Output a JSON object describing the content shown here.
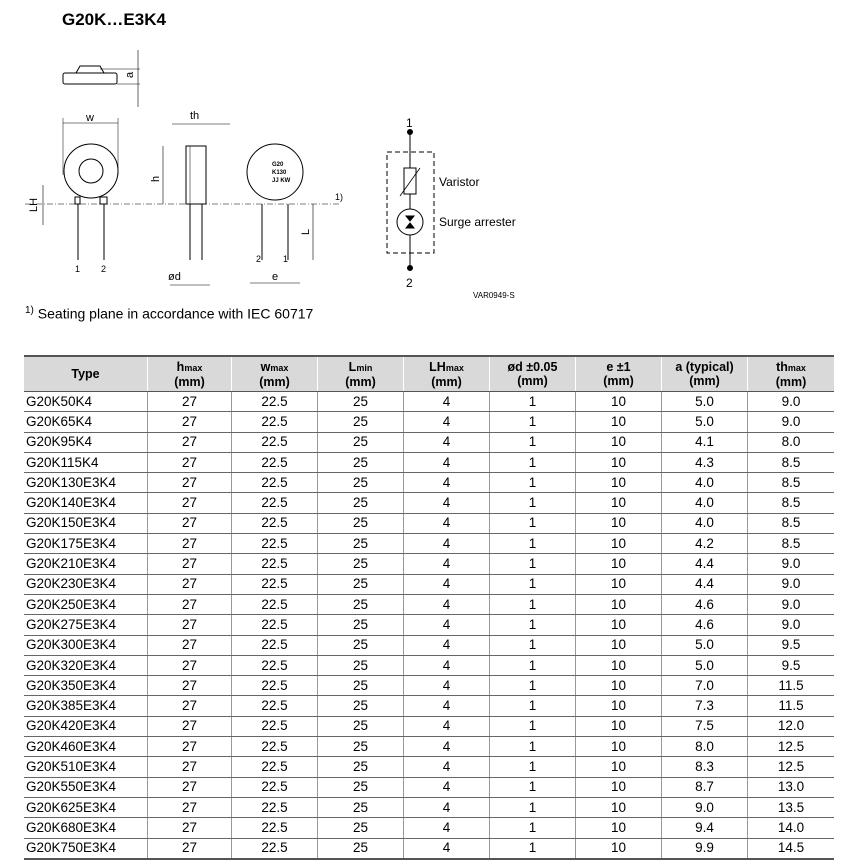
{
  "title": "G20K…E3K4",
  "drawing": {
    "dim_labels": {
      "a": "a",
      "w": "w",
      "th": "th",
      "h": "h",
      "LH": "LH",
      "L": "L",
      "d": "ød",
      "e": "e",
      "pin1": "1",
      "pin2": "2",
      "footnote_mark": "1)"
    },
    "marking": [
      "G20",
      "K130",
      "JJ KW"
    ],
    "schematic": {
      "pin_top": "1",
      "pin_bottom": "2",
      "varistor": "Varistor",
      "arrester": "Surge arrester"
    },
    "drawing_code": "VAR0949-S"
  },
  "footnote": {
    "mark": "1)",
    "text": "Seating plane in accordance with IEC 60717"
  },
  "table": {
    "headers": [
      {
        "main": "Type",
        "sub": "",
        "unit": ""
      },
      {
        "main": "h",
        "sub": "max",
        "unit": "(mm)"
      },
      {
        "main": "w",
        "sub": "max",
        "unit": "(mm)"
      },
      {
        "main": "L",
        "sub": "min",
        "unit": "(mm)"
      },
      {
        "main": "LH",
        "sub": "max",
        "unit": "(mm)"
      },
      {
        "main": "ød ±0.05",
        "sub": "",
        "unit": "(mm)"
      },
      {
        "main": "e ±1",
        "sub": "",
        "unit": "(mm)"
      },
      {
        "main": "a (typical)",
        "sub": "",
        "unit": "(mm)"
      },
      {
        "main": "th",
        "sub": "max",
        "unit": "(mm)"
      }
    ],
    "rows": [
      [
        "G20K50K4",
        "27",
        "22.5",
        "25",
        "4",
        "1",
        "10",
        "5.0",
        "9.0"
      ],
      [
        "G20K65K4",
        "27",
        "22.5",
        "25",
        "4",
        "1",
        "10",
        "5.0",
        "9.0"
      ],
      [
        "G20K95K4",
        "27",
        "22.5",
        "25",
        "4",
        "1",
        "10",
        "4.1",
        "8.0"
      ],
      [
        "G20K115K4",
        "27",
        "22.5",
        "25",
        "4",
        "1",
        "10",
        "4.3",
        "8.5"
      ],
      [
        "G20K130E3K4",
        "27",
        "22.5",
        "25",
        "4",
        "1",
        "10",
        "4.0",
        "8.5"
      ],
      [
        "G20K140E3K4",
        "27",
        "22.5",
        "25",
        "4",
        "1",
        "10",
        "4.0",
        "8.5"
      ],
      [
        "G20K150E3K4",
        "27",
        "22.5",
        "25",
        "4",
        "1",
        "10",
        "4.0",
        "8.5"
      ],
      [
        "G20K175E3K4",
        "27",
        "22.5",
        "25",
        "4",
        "1",
        "10",
        "4.2",
        "8.5"
      ],
      [
        "G20K210E3K4",
        "27",
        "22.5",
        "25",
        "4",
        "1",
        "10",
        "4.4",
        "9.0"
      ],
      [
        "G20K230E3K4",
        "27",
        "22.5",
        "25",
        "4",
        "1",
        "10",
        "4.4",
        "9.0"
      ],
      [
        "G20K250E3K4",
        "27",
        "22.5",
        "25",
        "4",
        "1",
        "10",
        "4.6",
        "9.0"
      ],
      [
        "G20K275E3K4",
        "27",
        "22.5",
        "25",
        "4",
        "1",
        "10",
        "4.6",
        "9.0"
      ],
      [
        "G20K300E3K4",
        "27",
        "22.5",
        "25",
        "4",
        "1",
        "10",
        "5.0",
        "9.5"
      ],
      [
        "G20K320E3K4",
        "27",
        "22.5",
        "25",
        "4",
        "1",
        "10",
        "5.0",
        "9.5"
      ],
      [
        "G20K350E3K4",
        "27",
        "22.5",
        "25",
        "4",
        "1",
        "10",
        "7.0",
        "11.5"
      ],
      [
        "G20K385E3K4",
        "27",
        "22.5",
        "25",
        "4",
        "1",
        "10",
        "7.3",
        "11.5"
      ],
      [
        "G20K420E3K4",
        "27",
        "22.5",
        "25",
        "4",
        "1",
        "10",
        "7.5",
        "12.0"
      ],
      [
        "G20K460E3K4",
        "27",
        "22.5",
        "25",
        "4",
        "1",
        "10",
        "8.0",
        "12.5"
      ],
      [
        "G20K510E3K4",
        "27",
        "22.5",
        "25",
        "4",
        "1",
        "10",
        "8.3",
        "12.5"
      ],
      [
        "G20K550E3K4",
        "27",
        "22.5",
        "25",
        "4",
        "1",
        "10",
        "8.7",
        "13.0"
      ],
      [
        "G20K625E3K4",
        "27",
        "22.5",
        "25",
        "4",
        "1",
        "10",
        "9.0",
        "13.5"
      ],
      [
        "G20K680E3K4",
        "27",
        "22.5",
        "25",
        "4",
        "1",
        "10",
        "9.4",
        "14.0"
      ],
      [
        "G20K750E3K4",
        "27",
        "22.5",
        "25",
        "4",
        "1",
        "10",
        "9.9",
        "14.5"
      ]
    ]
  }
}
